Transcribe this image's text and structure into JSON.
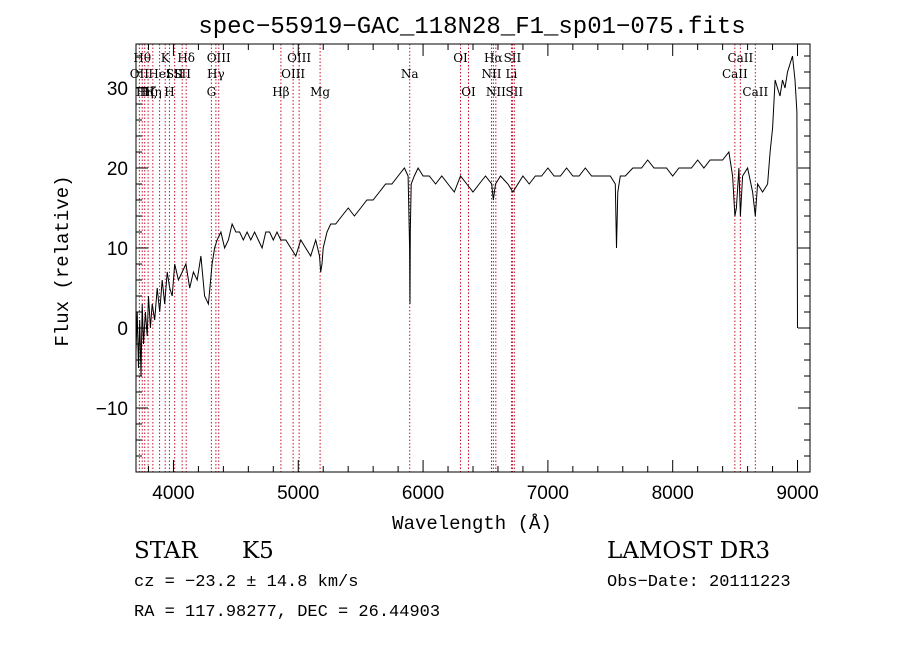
{
  "chart_data": {
    "type": "line",
    "title": "spec−55919−GAC_118N28_F1_sp01−075.fits",
    "xlabel": "Wavelength (Å)",
    "ylabel": "Flux (relative)",
    "xlim": [
      3700,
      9100
    ],
    "ylim": [
      -18,
      35.5
    ],
    "xticks": [
      {
        "value": 4000,
        "label": "4000"
      },
      {
        "value": 5000,
        "label": "5000"
      },
      {
        "value": 6000,
        "label": "6000"
      },
      {
        "value": 7000,
        "label": "7000"
      },
      {
        "value": 8000,
        "label": "8000"
      },
      {
        "value": 9000,
        "label": "9000"
      }
    ],
    "yticks": [
      {
        "value": -10,
        "label": "−10"
      },
      {
        "value": 0,
        "label": "0"
      },
      {
        "value": 10,
        "label": "10"
      },
      {
        "value": 20,
        "label": "20"
      },
      {
        "value": 30,
        "label": "30"
      }
    ],
    "series": [
      {
        "name": "spectrum",
        "x": [
          3700,
          3710,
          3720,
          3730,
          3740,
          3750,
          3760,
          3775,
          3790,
          3800,
          3815,
          3830,
          3850,
          3870,
          3890,
          3910,
          3930,
          3950,
          3970,
          3990,
          4010,
          4040,
          4070,
          4100,
          4130,
          4160,
          4190,
          4220,
          4250,
          4280,
          4310,
          4330,
          4350,
          4380,
          4410,
          4440,
          4470,
          4500,
          4530,
          4560,
          4590,
          4620,
          4650,
          4680,
          4710,
          4740,
          4770,
          4800,
          4830,
          4860,
          4900,
          4940,
          4980,
          5020,
          5060,
          5100,
          5140,
          5170,
          5180,
          5190,
          5200,
          5230,
          5260,
          5300,
          5350,
          5400,
          5450,
          5500,
          5550,
          5600,
          5650,
          5700,
          5750,
          5800,
          5850,
          5880,
          5892,
          5895,
          5898,
          5905,
          5930,
          5960,
          6000,
          6050,
          6100,
          6150,
          6200,
          6250,
          6300,
          6350,
          6400,
          6450,
          6500,
          6550,
          6563,
          6580,
          6620,
          6680,
          6720,
          6760,
          6800,
          6850,
          6900,
          6950,
          7000,
          7050,
          7100,
          7150,
          7200,
          7250,
          7300,
          7350,
          7400,
          7450,
          7500,
          7540,
          7550,
          7560,
          7580,
          7620,
          7680,
          7750,
          7800,
          7850,
          7900,
          7950,
          8000,
          8050,
          8100,
          8150,
          8200,
          8250,
          8300,
          8350,
          8400,
          8450,
          8480,
          8498,
          8510,
          8530,
          8542,
          8560,
          8600,
          8640,
          8662,
          8680,
          8720,
          8760,
          8780,
          8800,
          8820,
          8840,
          8860,
          8880,
          8900,
          8920,
          8940,
          8960,
          8980,
          8995,
          9000
        ],
        "y": [
          -3,
          2,
          -5,
          1,
          -6,
          3,
          -2,
          2,
          -1,
          4,
          0,
          3,
          1,
          5,
          2,
          6,
          3,
          7,
          5,
          4,
          8,
          6,
          7,
          8,
          5,
          7,
          6,
          9,
          4,
          3,
          8,
          10,
          11,
          12,
          10,
          11,
          13,
          12,
          12,
          11,
          12,
          11,
          12,
          11,
          10,
          12,
          12,
          11,
          12,
          11,
          11,
          10,
          9,
          11,
          10,
          9,
          11,
          9,
          7,
          8,
          10,
          12,
          13,
          13,
          14,
          15,
          14,
          15,
          16,
          16,
          17,
          18,
          18,
          19,
          20,
          19,
          10,
          3,
          12,
          18,
          19,
          20,
          19,
          19,
          18,
          19,
          18,
          17,
          19,
          18,
          17,
          18,
          19,
          18,
          16,
          18,
          19,
          18,
          17,
          18,
          19,
          18,
          19,
          19,
          20,
          19,
          19,
          20,
          19,
          19,
          20,
          19,
          19,
          19,
          19,
          18,
          10,
          17,
          19,
          19,
          20,
          20,
          21,
          20,
          20,
          20,
          19,
          20,
          20,
          20,
          21,
          20,
          21,
          21,
          21,
          22,
          19,
          14,
          15,
          20,
          14,
          19,
          20,
          17,
          14,
          18,
          17,
          18,
          22,
          25,
          31,
          30,
          29,
          31,
          30,
          32,
          33,
          34,
          31,
          27,
          0
        ]
      }
    ],
    "lines": [
      {
        "wavelength": 3727,
        "label": "OII",
        "row": 2
      },
      {
        "wavelength": 3750,
        "label": "Hθ",
        "row": 1
      },
      {
        "wavelength": 3770,
        "label": "Hη",
        "row": 3
      },
      {
        "wavelength": 3797,
        "label": "Hζ",
        "row": 3
      },
      {
        "wavelength": 3835,
        "label": "Hη",
        "row": 3
      },
      {
        "wavelength": 3889,
        "label": "HeI",
        "row": 2
      },
      {
        "wavelength": 3934,
        "label": "K",
        "row": 1
      },
      {
        "wavelength": 3968,
        "label": "H",
        "row": 3
      },
      {
        "wavelength": 4010,
        "label": "SII",
        "row": 2
      },
      {
        "wavelength": 4070,
        "label": "SII",
        "row": 2
      },
      {
        "wavelength": 4102,
        "label": "Hδ",
        "row": 1
      },
      {
        "wavelength": 4304,
        "label": "G",
        "row": 3
      },
      {
        "wavelength": 4340,
        "label": "Hγ",
        "row": 2
      },
      {
        "wavelength": 4363,
        "label": "OIII",
        "row": 1
      },
      {
        "wavelength": 4861,
        "label": "Hβ",
        "row": 3
      },
      {
        "wavelength": 4959,
        "label": "OIII",
        "row": 2
      },
      {
        "wavelength": 5007,
        "label": "OIII",
        "row": 1
      },
      {
        "wavelength": 5175,
        "label": "Mg",
        "row": 3
      },
      {
        "wavelength": 5893,
        "label": "Na",
        "row": 2
      },
      {
        "wavelength": 6300,
        "label": "OI",
        "row": 1
      },
      {
        "wavelength": 6364,
        "label": "OI",
        "row": 3
      },
      {
        "wavelength": 6548,
        "label": "NII",
        "row": 2
      },
      {
        "wavelength": 6563,
        "label": "Hα",
        "row": 1
      },
      {
        "wavelength": 6583,
        "label": "NII",
        "row": 3
      },
      {
        "wavelength": 6708,
        "label": "Li",
        "row": 2
      },
      {
        "wavelength": 6716,
        "label": "SII",
        "row": 1
      },
      {
        "wavelength": 6731,
        "label": "SII",
        "row": 3
      },
      {
        "wavelength": 8498,
        "label": "CaII",
        "row": 2
      },
      {
        "wavelength": 8542,
        "label": "CaII",
        "row": 1
      },
      {
        "wavelength": 8662,
        "label": "CaII",
        "row": 3
      }
    ]
  },
  "info": {
    "object_class": "STAR",
    "subclass": "K5",
    "survey": "LAMOST DR3",
    "redshift": "cz = −23.2 ± 14.8 km/s",
    "obs_date": "Obs−Date: 20111223",
    "coords": "RA = 117.98277, DEC =  26.44903"
  }
}
